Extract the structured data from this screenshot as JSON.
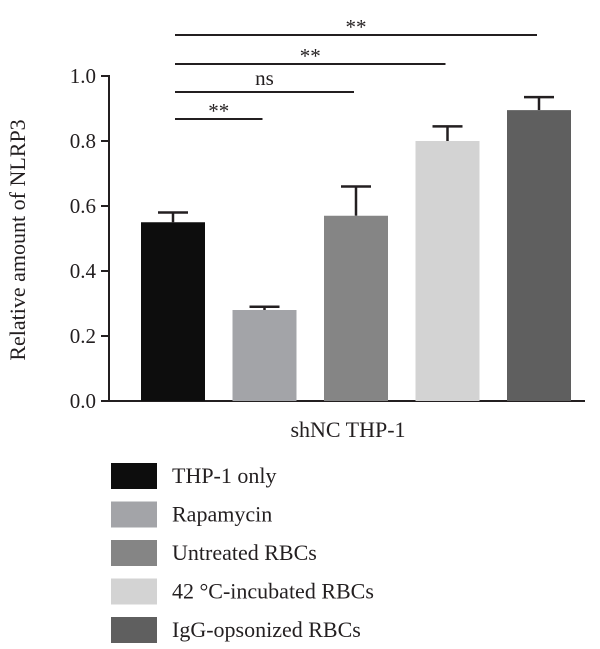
{
  "chart_data": {
    "type": "bar",
    "ylabel": "Relative amount of NLRP3",
    "xlabel": "shNC THP-1",
    "ylim": [
      0,
      1.0
    ],
    "yticks": [
      "0.0",
      "0.2",
      "0.4",
      "0.6",
      "0.8",
      "1.0"
    ],
    "grid": false,
    "legend_position": "bottom-left",
    "series": [
      {
        "name": "THP-1 only",
        "value": 0.55,
        "error": 0.03,
        "color": "#0d0d0d"
      },
      {
        "name": "Rapamycin",
        "value": 0.28,
        "error": 0.01,
        "color": "#a3a4a8"
      },
      {
        "name": "Untreated RBCs",
        "value": 0.57,
        "error": 0.09,
        "color": "#858585"
      },
      {
        "name": "42 °C-incubated RBCs",
        "value": 0.8,
        "error": 0.045,
        "color": "#d3d3d3"
      },
      {
        "name": "IgG-opsonized RBCs",
        "value": 0.895,
        "error": 0.04,
        "color": "#5f5f5f"
      }
    ],
    "significance": [
      {
        "from": 0,
        "to": 1,
        "label": "**"
      },
      {
        "from": 0,
        "to": 2,
        "label": "ns"
      },
      {
        "from": 0,
        "to": 3,
        "label": "**"
      },
      {
        "from": 0,
        "to": 4,
        "label": "**"
      }
    ]
  }
}
